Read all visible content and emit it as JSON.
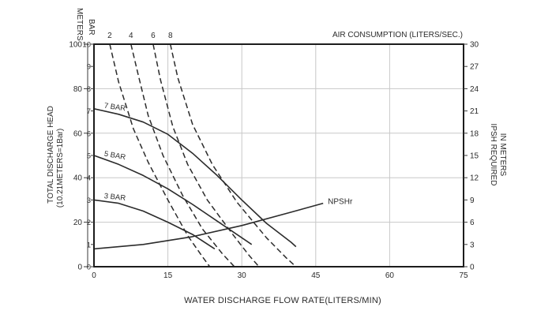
{
  "chart_data": {
    "type": "line",
    "title": "",
    "xlabel": "WATER DISCHARGE FLOW RATE(LITERS/MIN)",
    "xlim": [
      0,
      75
    ],
    "x_ticks": [
      "0",
      "15",
      "30",
      "45",
      "60",
      "75"
    ],
    "left_axis": {
      "meters_header": "METERS",
      "meters_ticks": [
        "0",
        "20",
        "40",
        "60",
        "80",
        "100"
      ],
      "bar_header": "BAR",
      "bar_ticks": [
        "0",
        "1",
        "2",
        "3",
        "4",
        "5",
        "6",
        "7",
        "8",
        "9",
        "10"
      ],
      "label_line1": "TOTAL DISCHARGE HEAD",
      "label_line2": "(10.21METERS=1Bar)",
      "ylim": [
        0,
        10
      ]
    },
    "right_axis": {
      "label_line1": "IPSH REQUIRED",
      "label_line2": "IN METERS",
      "ticks": [
        "0",
        "3",
        "6",
        "9",
        "12",
        "15",
        "18",
        "21",
        "24",
        "27",
        "30"
      ],
      "ylim": [
        0,
        30
      ]
    },
    "top_axis": {
      "label": "AIR CONSUMPTION (LITERS/SEC.)",
      "ticks": [
        "2",
        "4",
        "6",
        "8"
      ]
    },
    "grid": true,
    "series": [
      {
        "name": "7 BAR",
        "style": "solid",
        "x": [
          0,
          5,
          10,
          15,
          20,
          25,
          30,
          35,
          40,
          41
        ],
        "y": [
          7.1,
          6.85,
          6.5,
          5.95,
          5.1,
          4.1,
          3.0,
          1.95,
          1.1,
          0.9
        ]
      },
      {
        "name": "5 BAR",
        "style": "solid",
        "x": [
          0,
          5,
          10,
          15,
          20,
          25,
          30,
          32
        ],
        "y": [
          5.0,
          4.6,
          4.1,
          3.5,
          2.8,
          2.05,
          1.3,
          1.0
        ]
      },
      {
        "name": "3 BAR",
        "style": "solid",
        "x": [
          0,
          5,
          10,
          15,
          20,
          24.5
        ],
        "y": [
          3.0,
          2.85,
          2.5,
          2.0,
          1.45,
          0.8
        ]
      },
      {
        "name": "NPSHr",
        "style": "solid",
        "x": [
          0,
          10,
          20,
          30,
          40,
          46.5
        ],
        "y": [
          0.8,
          1.0,
          1.35,
          1.85,
          2.45,
          2.85
        ]
      },
      {
        "name": "2",
        "style": "dashed",
        "x": [
          3.2,
          5,
          8,
          11,
          15,
          19,
          22,
          23.5
        ],
        "y": [
          10,
          8.3,
          6.2,
          4.7,
          3.0,
          1.4,
          0.45,
          0.0
        ]
      },
      {
        "name": "4",
        "style": "dashed",
        "x": [
          7.5,
          9,
          11,
          14,
          18,
          22,
          26,
          28.5
        ],
        "y": [
          10,
          8.6,
          6.8,
          5.0,
          3.2,
          1.7,
          0.6,
          0.0
        ]
      },
      {
        "name": "6",
        "style": "dashed",
        "x": [
          12,
          13.5,
          16,
          19,
          23,
          28,
          31.5,
          33.5
        ],
        "y": [
          10,
          8.4,
          6.3,
          4.6,
          3.0,
          1.5,
          0.5,
          0.0
        ]
      },
      {
        "name": "8",
        "style": "dashed",
        "x": [
          15.5,
          17,
          20,
          24,
          29,
          35,
          39,
          41
        ],
        "y": [
          10,
          8.5,
          6.4,
          4.6,
          2.9,
          1.3,
          0.4,
          0.0
        ]
      }
    ]
  }
}
